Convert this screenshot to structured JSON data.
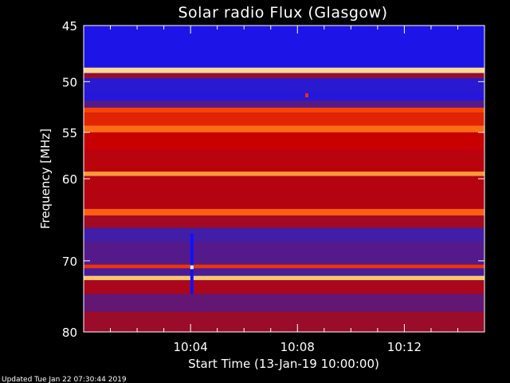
{
  "chart_data": {
    "type": "heatmap",
    "title": "Solar radio Flux (Glasgow)",
    "xlabel": "Start Time (13-Jan-19 10:00:00)",
    "ylabel": "Frequency [MHz]",
    "x_ticks": [
      "10:04",
      "10:08",
      "10:12"
    ],
    "x_tick_minutes": [
      4,
      8,
      12
    ],
    "xlim_minutes": [
      0,
      15
    ],
    "y_ticks": [
      45,
      50,
      55,
      60,
      70,
      80
    ],
    "ylim_mhz": [
      45,
      80
    ],
    "y_scale": "log",
    "colormap": [
      "#1010ff",
      "#3a1fb0",
      "#8a0f3a",
      "#c80000",
      "#ff4a00",
      "#ffb040",
      "#ffffe0"
    ],
    "bands": [
      {
        "from": 45.0,
        "to": 48.7,
        "level": 0.05
      },
      {
        "from": 48.7,
        "to": 49.2,
        "level": 0.92
      },
      {
        "from": 49.2,
        "to": 49.7,
        "level": 0.35
      },
      {
        "from": 49.7,
        "to": 51.0,
        "level": 0.1
      },
      {
        "from": 51.0,
        "to": 51.8,
        "level": 0.08
      },
      {
        "from": 51.8,
        "to": 52.5,
        "level": 0.22
      },
      {
        "from": 52.5,
        "to": 53.0,
        "level": 0.65
      },
      {
        "from": 53.0,
        "to": 54.3,
        "level": 0.58
      },
      {
        "from": 54.3,
        "to": 55.0,
        "level": 0.72
      },
      {
        "from": 55.0,
        "to": 57.0,
        "level": 0.5
      },
      {
        "from": 57.0,
        "to": 59.2,
        "level": 0.46
      },
      {
        "from": 59.2,
        "to": 59.7,
        "level": 0.8
      },
      {
        "from": 59.7,
        "to": 63.5,
        "level": 0.45
      },
      {
        "from": 63.5,
        "to": 64.3,
        "level": 0.7
      },
      {
        "from": 64.3,
        "to": 65.8,
        "level": 0.4
      },
      {
        "from": 65.8,
        "to": 67.5,
        "level": 0.18
      },
      {
        "from": 67.5,
        "to": 70.5,
        "level": 0.22
      },
      {
        "from": 70.5,
        "to": 71.0,
        "level": 0.62
      },
      {
        "from": 71.0,
        "to": 72.0,
        "level": 0.2
      },
      {
        "from": 72.0,
        "to": 72.6,
        "level": 0.88
      },
      {
        "from": 72.6,
        "to": 74.5,
        "level": 0.42
      },
      {
        "from": 74.5,
        "to": 77.0,
        "level": 0.25
      },
      {
        "from": 77.0,
        "to": 80.0,
        "level": 0.38
      }
    ],
    "events": [
      {
        "minute": 4.05,
        "from": 66.5,
        "to": 74.5,
        "level": 0.0
      },
      {
        "minute": 4.05,
        "from": 70.6,
        "to": 71.1,
        "level": 1.0
      },
      {
        "minute": 8.35,
        "from": 51.1,
        "to": 51.5,
        "level": 0.6
      }
    ]
  },
  "footer": {
    "updated": "Updated Tue Jan 22 07:30:44 2019"
  }
}
